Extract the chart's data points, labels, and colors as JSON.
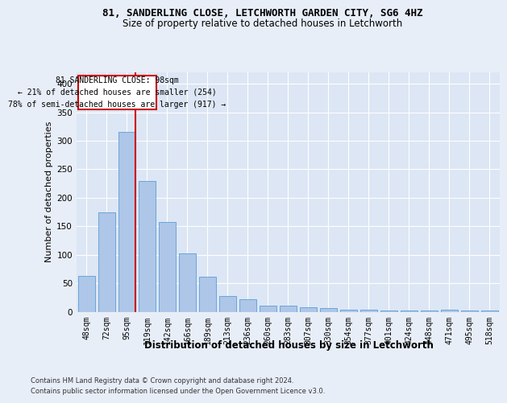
{
  "title_line1": "81, SANDERLING CLOSE, LETCHWORTH GARDEN CITY, SG6 4HZ",
  "title_line2": "Size of property relative to detached houses in Letchworth",
  "xlabel": "Distribution of detached houses by size in Letchworth",
  "ylabel": "Number of detached properties",
  "categories": [
    "48sqm",
    "72sqm",
    "95sqm",
    "119sqm",
    "142sqm",
    "166sqm",
    "189sqm",
    "213sqm",
    "236sqm",
    "260sqm",
    "283sqm",
    "307sqm",
    "330sqm",
    "354sqm",
    "377sqm",
    "401sqm",
    "424sqm",
    "448sqm",
    "471sqm",
    "495sqm",
    "518sqm"
  ],
  "values": [
    63,
    175,
    315,
    230,
    158,
    103,
    62,
    28,
    22,
    10,
    10,
    8,
    6,
    4,
    3,
    2,
    2,
    2,
    3,
    2,
    2
  ],
  "bar_color": "#aec6e8",
  "bar_edge_color": "#5a9fd4",
  "vline_color": "#cc0000",
  "annotation_text": "81 SANDERLING CLOSE: 98sqm\n← 21% of detached houses are smaller (254)\n78% of semi-detached houses are larger (917) →",
  "annotation_box_color": "#ffffff",
  "annotation_box_edge": "#cc0000",
  "ylim": [
    0,
    420
  ],
  "yticks": [
    0,
    50,
    100,
    150,
    200,
    250,
    300,
    350,
    400
  ],
  "footer_line1": "Contains HM Land Registry data © Crown copyright and database right 2024.",
  "footer_line2": "Contains public sector information licensed under the Open Government Licence v3.0.",
  "background_color": "#e8eef8",
  "plot_bg_color": "#dce6f5",
  "title1_fontsize": 9.0,
  "title2_fontsize": 8.5,
  "ylabel_fontsize": 8.0,
  "xlabel_fontsize": 8.5,
  "tick_fontsize": 7.0,
  "footer_fontsize": 6.0
}
